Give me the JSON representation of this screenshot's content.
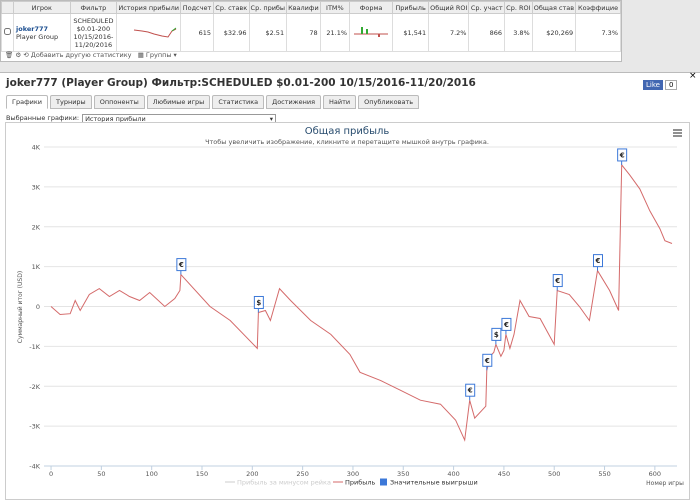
{
  "table": {
    "columns": [
      "Игрок",
      "Фильтр",
      "История прибыли",
      "Подсчет",
      "Ср. ставк",
      "Ср. прибы",
      "Квалифи",
      "ITM%",
      "Форма",
      "Прибыль",
      "Общий ROI",
      "Ср. участ",
      "Ср. ROI",
      "Общая став",
      "Коэффицие"
    ],
    "row": {
      "player": "joker777",
      "group": "Player Group",
      "filter": [
        "SCHEDULED",
        "$0.01-200",
        "10/15/2016-",
        "11/20/2016"
      ],
      "stats": [
        "615",
        "$32.96",
        "$2.51",
        "78",
        "21.1%",
        "$1,541",
        "7.2%",
        "866",
        "3.8%",
        "$20,269",
        "7.3%"
      ]
    }
  },
  "toolbar": {
    "add": "Добавить другую статистику",
    "groups": "Группы"
  },
  "panel": {
    "title": "joker777 (Player Group) Фильтр:SCHEDULED $0.01-200 10/15/2016-11/20/2016",
    "like": "Like",
    "like_count": "0",
    "tabs": [
      "Графики",
      "Турниры",
      "Оппоненты",
      "Любимые игры",
      "Статистика",
      "Достижения",
      "Найти",
      "Опубликовать"
    ],
    "selector_label": "Выбранные графики:",
    "selector_value": "История прибыли"
  },
  "chart_data": {
    "type": "line",
    "title": "Общая прибыль",
    "subtitle": "Чтобы увеличить изображение, кликните и перетащите мышкой внутрь графика.",
    "y_label": "Суммарный итог (USD)",
    "x_label": "Номер игры",
    "xlim": [
      -7,
      622
    ],
    "xticks": [
      0,
      50,
      100,
      150,
      200,
      250,
      300,
      350,
      400,
      450,
      500,
      550,
      600
    ],
    "ylim": [
      -4000,
      4000
    ],
    "yticks": [
      {
        "value": -4000,
        "label": "-4K"
      },
      {
        "value": -3000,
        "label": "-3K"
      },
      {
        "value": -2000,
        "label": "-2K"
      },
      {
        "value": -1000,
        "label": "-1K"
      },
      0,
      {
        "value": 1000,
        "label": "1K"
      },
      {
        "value": 2000,
        "label": "2K"
      },
      {
        "value": 3000,
        "label": "3K"
      },
      {
        "value": 4000,
        "label": "4K"
      }
    ],
    "grid": true,
    "series": [
      {
        "name": "Прибыль",
        "color": "#d46a6a",
        "x": [
          0,
          9,
          19,
          24,
          29,
          38,
          48,
          58,
          68,
          78,
          88,
          98,
          113,
          123,
          128,
          129,
          158,
          178,
          205,
          206,
          213,
          218,
          227,
          238,
          258,
          278,
          297,
          307,
          327,
          347,
          367,
          387,
          402,
          411,
          416,
          421,
          432,
          433,
          437,
          440,
          442,
          447,
          450,
          452,
          456,
          460,
          466,
          475,
          486,
          500,
          503,
          515,
          525,
          535,
          543,
          555,
          564,
          567,
          575,
          585,
          595,
          605,
          610,
          617
        ],
        "values": [
          0,
          -200,
          -180,
          150,
          -100,
          300,
          450,
          250,
          400,
          250,
          150,
          350,
          0,
          200,
          400,
          800,
          0,
          -350,
          -1050,
          -150,
          -100,
          -350,
          450,
          150,
          -350,
          -700,
          -1200,
          -1650,
          -1850,
          -2100,
          -2350,
          -2450,
          -2850,
          -3350,
          -2350,
          -2800,
          -2500,
          -1600,
          -1230,
          -1150,
          -950,
          -1250,
          -1100,
          -700,
          -1050,
          -700,
          150,
          -250,
          -300,
          -950,
          400,
          300,
          0,
          -350,
          900,
          400,
          -100,
          3550,
          3300,
          2950,
          2400,
          1950,
          1650,
          1580
        ]
      }
    ],
    "inactive_legend": {
      "name": "Прибыль за минусом рейка",
      "color": "#cccccc"
    },
    "markers": {
      "name": "Значительные выигрыши",
      "color": "#3c78d8",
      "x": [
        129,
        206,
        416,
        433,
        442,
        452,
        503,
        543,
        567
      ],
      "y": [
        800,
        -150,
        -2350,
        -1600,
        -950,
        -700,
        400,
        900,
        3550
      ],
      "labels": [
        "€",
        "$",
        "€",
        "€",
        "$",
        "€",
        "€",
        "€",
        "€"
      ]
    }
  }
}
